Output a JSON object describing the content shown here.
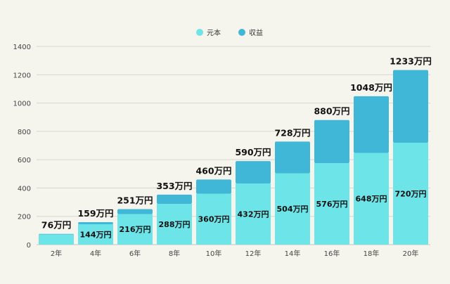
{
  "chart_data": {
    "type": "bar",
    "stacked": true,
    "categories": [
      "2年",
      "4年",
      "6年",
      "8年",
      "10年",
      "12年",
      "14年",
      "16年",
      "18年",
      "20年"
    ],
    "series": [
      {
        "name": "元本",
        "color": "#6de4e8",
        "values": [
          72,
          144,
          216,
          288,
          360,
          432,
          504,
          576,
          648,
          720
        ]
      },
      {
        "name": "収益",
        "color": "#41b7d8",
        "values": [
          4,
          15,
          35,
          65,
          100,
          158,
          224,
          304,
          400,
          513
        ]
      }
    ],
    "inner_labels": [
      "",
      "144万円",
      "216万円",
      "288万円",
      "360万円",
      "432万円",
      "504万円",
      "576万円",
      "648万円",
      "720万円"
    ],
    "total_labels": [
      "76万円",
      "159万円",
      "251万円",
      "353万円",
      "460万円",
      "590万円",
      "728万円",
      "880万円",
      "1048万円",
      "1233万円"
    ],
    "ylim": [
      0,
      1400
    ],
    "yticks": [
      "0",
      "200",
      "400",
      "600",
      "800",
      "1000",
      "1200",
      "1400"
    ],
    "grid": true,
    "legend": "top-center",
    "title": "",
    "xlabel": "",
    "ylabel": ""
  }
}
